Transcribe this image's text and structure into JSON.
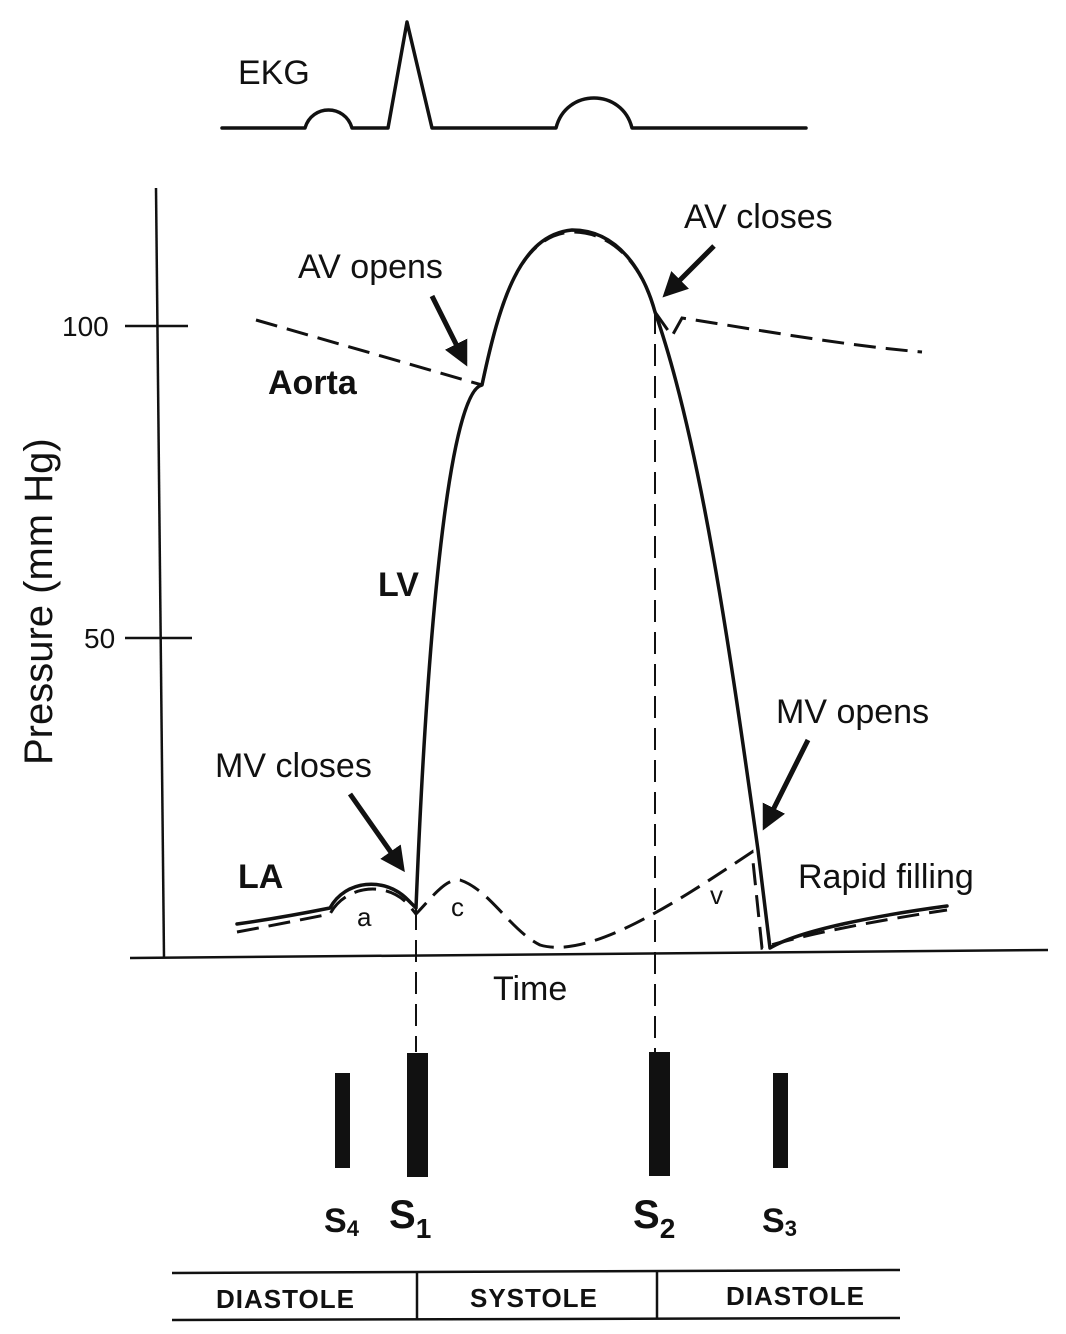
{
  "ekg": {
    "label": "EKG"
  },
  "axes": {
    "y_label": "Pressure (mm Hg)",
    "y_ticks": [
      "100",
      "50"
    ],
    "x_label": "Time"
  },
  "curves": {
    "aorta": "Aorta",
    "lv": "LV",
    "la": "LA"
  },
  "annotations": {
    "av_opens": "AV opens",
    "av_closes": "AV closes",
    "mv_closes": "MV closes",
    "mv_opens": "MV opens",
    "rapid_filling": "Rapid filling"
  },
  "waves": {
    "a": "a",
    "c": "c",
    "v": "v"
  },
  "heart_sounds": [
    {
      "id": "s4",
      "base": "S",
      "sub": "4"
    },
    {
      "id": "s1",
      "base": "S",
      "sub": "1"
    },
    {
      "id": "s2",
      "base": "S",
      "sub": "2"
    },
    {
      "id": "s3",
      "base": "S",
      "sub": "3"
    }
  ],
  "phases": [
    "DIASTOLE",
    "SYSTOLE",
    "DIASTOLE"
  ]
}
